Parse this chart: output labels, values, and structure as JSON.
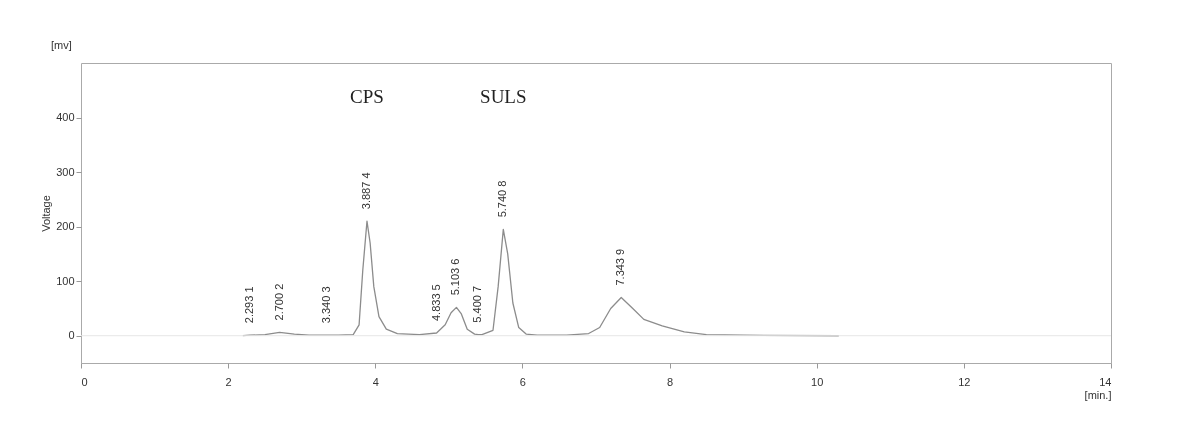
{
  "chart_data": {
    "type": "line",
    "xlabel": "[min.]",
    "ylabel": "Voltage",
    "x": [
      2.2,
      2.293,
      2.5,
      2.7,
      2.9,
      3.1,
      3.34,
      3.5,
      3.7,
      3.78,
      3.83,
      3.887,
      3.93,
      3.98,
      4.05,
      4.15,
      4.3,
      4.6,
      4.833,
      4.95,
      5.03,
      5.103,
      5.17,
      5.25,
      5.35,
      5.4,
      5.45,
      5.6,
      5.67,
      5.74,
      5.8,
      5.87,
      5.95,
      6.05,
      6.2,
      6.6,
      6.9,
      7.05,
      7.2,
      7.343,
      7.5,
      7.65,
      7.9,
      8.2,
      8.5,
      9.0,
      10.3
    ],
    "series": [
      {
        "color": "#8c8c8c",
        "values": [
          0,
          1,
          2,
          6,
          3,
          1,
          1,
          1,
          2,
          20,
          120,
          210,
          170,
          90,
          35,
          12,
          4,
          2,
          5,
          20,
          42,
          52,
          40,
          12,
          3,
          2,
          2,
          10,
          90,
          195,
          150,
          60,
          15,
          3,
          1,
          1,
          4,
          15,
          50,
          70,
          50,
          30,
          18,
          7,
          2,
          1,
          0
        ]
      }
    ],
    "xlim": [
      0,
      14
    ],
    "xticks": [
      0,
      2,
      4,
      6,
      8,
      10,
      12,
      14
    ],
    "ylim": [
      -50,
      500
    ],
    "yticks": [
      0,
      100,
      200,
      300,
      400
    ],
    "marker": "none",
    "line_style": "solid",
    "ref_lines": [
      {
        "axis": "y",
        "value": 0,
        "color": "#e6e6e6"
      }
    ],
    "annotations": [
      "[mv]",
      {
        "text": "2.293  1",
        "x": 2.293,
        "y": 1
      },
      {
        "text": "2.700  2",
        "x": 2.7,
        "y": 6
      },
      {
        "text": "3.340  3",
        "x": 3.34,
        "y": 1
      },
      {
        "text": "3.887  4",
        "x": 3.887,
        "y": 210
      },
      {
        "text": "4.833  5",
        "x": 4.833,
        "y": 5
      },
      {
        "text": "5.103  6",
        "x": 5.103,
        "y": 52
      },
      {
        "text": "5.400  7",
        "x": 5.4,
        "y": 2
      },
      {
        "text": "5.740  8",
        "x": 5.74,
        "y": 195
      },
      {
        "text": "7.343  9",
        "x": 7.343,
        "y": 70
      },
      "CPS",
      "SULS"
    ]
  }
}
